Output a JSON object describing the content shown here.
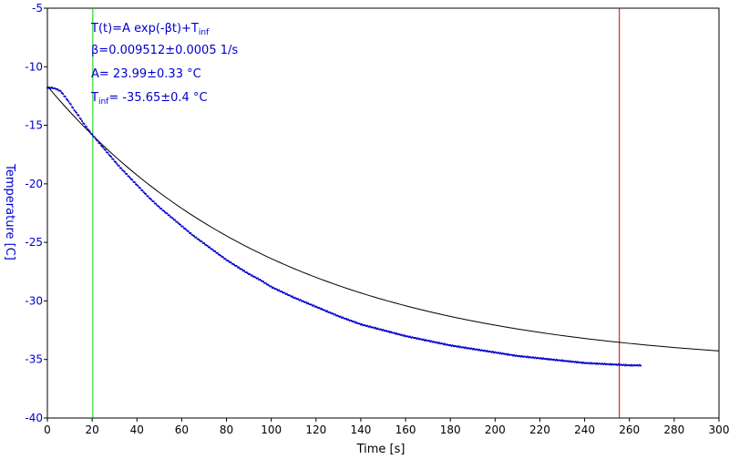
{
  "chart_data": {
    "type": "scatter",
    "xlabel": "Time [s]",
    "ylabel": "Temperature [C]",
    "xlim": [
      0,
      300
    ],
    "ylim": [
      -40,
      -5
    ],
    "x_ticks": [
      0,
      20,
      40,
      60,
      80,
      100,
      120,
      140,
      160,
      180,
      200,
      220,
      240,
      260,
      280,
      300
    ],
    "y_ticks": [
      -5,
      -10,
      -15,
      -20,
      -25,
      -30,
      -35,
      -40
    ],
    "grid": false,
    "colors": {
      "data": "#0000cc",
      "fit": "#000000",
      "left_cursor": "#00cc00",
      "right_cursor": "#cc0000",
      "axis_text_y": "#0000cc",
      "annotation": "#0000cc"
    },
    "series": [
      {
        "kind": "measured",
        "x": [
          0,
          2,
          4,
          6,
          8,
          10,
          12,
          14,
          16,
          18,
          20,
          24,
          28,
          32,
          36,
          40,
          45,
          50,
          55,
          60,
          65,
          70,
          75,
          80,
          85,
          90,
          95,
          100,
          110,
          120,
          130,
          140,
          150,
          160,
          170,
          180,
          190,
          200,
          210,
          220,
          230,
          240,
          250,
          260,
          265
        ],
        "y": [
          -11.8,
          -11.8,
          -11.9,
          -12.1,
          -12.6,
          -13.1,
          -13.7,
          -14.2,
          -14.8,
          -15.3,
          -15.8,
          -16.7,
          -17.6,
          -18.5,
          -19.3,
          -20.1,
          -21.1,
          -22.0,
          -22.8,
          -23.6,
          -24.4,
          -25.1,
          -25.8,
          -26.5,
          -27.1,
          -27.7,
          -28.2,
          -28.8,
          -29.7,
          -30.5,
          -31.3,
          -32.0,
          -32.5,
          -33.0,
          -33.4,
          -33.8,
          -34.1,
          -34.4,
          -34.7,
          -34.9,
          -35.1,
          -35.3,
          -35.4,
          -35.5,
          -35.5
        ]
      },
      {
        "kind": "fit",
        "model": "T(t)=A*exp(-beta*t)+T_inf",
        "beta": 0.009512,
        "A": 23.99,
        "T_inf": -35.65,
        "x_range": [
          0,
          300
        ]
      }
    ],
    "cursors": [
      {
        "kind": "start",
        "x": 20.3
      },
      {
        "kind": "end",
        "x": 255.5
      }
    ],
    "annotation": {
      "line1_main": "T(t)=A exp(-βt)+T",
      "line1_sub": "inf",
      "line2": "β=0.009512±0.0005 1/s",
      "line3": "A= 23.99±0.33 °C",
      "line4_main": "T",
      "line4_sub": "inf",
      "line4_rest": "= -35.65±0.4 °C"
    }
  }
}
